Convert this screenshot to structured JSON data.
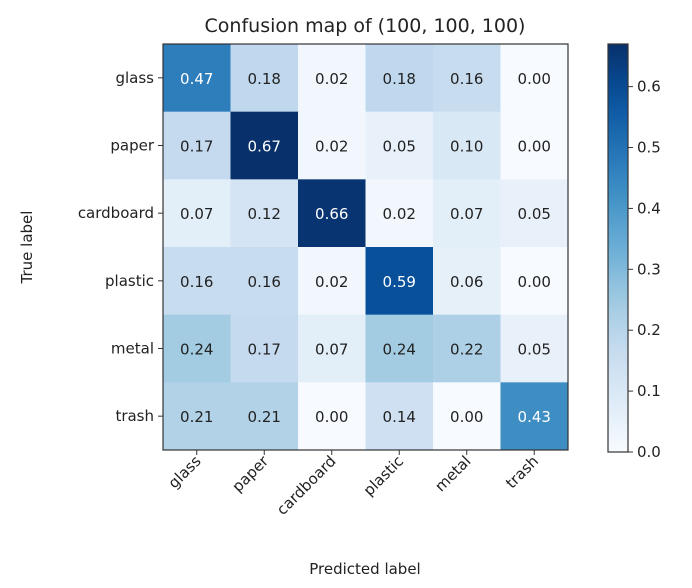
{
  "chart_data": {
    "type": "heatmap",
    "title": "Confusion map of (100, 100, 100)",
    "xlabel": "Predicted label",
    "ylabel": "True label",
    "x_categories": [
      "glass",
      "paper",
      "cardboard",
      "plastic",
      "metal",
      "trash"
    ],
    "y_categories": [
      "glass",
      "paper",
      "cardboard",
      "plastic",
      "metal",
      "trash"
    ],
    "values": [
      [
        0.47,
        0.18,
        0.02,
        0.18,
        0.16,
        0.0
      ],
      [
        0.17,
        0.67,
        0.02,
        0.05,
        0.1,
        0.0
      ],
      [
        0.07,
        0.12,
        0.66,
        0.02,
        0.07,
        0.05
      ],
      [
        0.16,
        0.16,
        0.02,
        0.59,
        0.06,
        0.0
      ],
      [
        0.24,
        0.17,
        0.07,
        0.24,
        0.22,
        0.05
      ],
      [
        0.21,
        0.21,
        0.0,
        0.14,
        0.0,
        0.43
      ]
    ],
    "colormap": "Blues",
    "colorbar": {
      "range": [
        0,
        0.67
      ],
      "ticks": [
        "0.0",
        "0.1",
        "0.2",
        "0.3",
        "0.4",
        "0.5",
        "0.6"
      ]
    },
    "grid": false
  }
}
